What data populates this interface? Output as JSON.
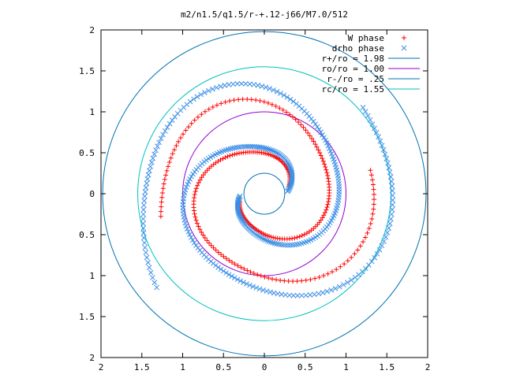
{
  "chart_data": {
    "type": "scatter",
    "title": "m2/n1.5/q1.5/r-+.12-j66/M7.0/512",
    "xlim": [
      -2,
      2
    ],
    "ylim": [
      -2,
      2
    ],
    "xticks": [
      "2",
      "1.5",
      "1",
      "0.5",
      "0",
      "0.5",
      "1",
      "1.5",
      "2"
    ],
    "yticks": [
      "2",
      "1.5",
      "1",
      "0.5",
      "0",
      "0.5",
      "1",
      "1.5",
      "2"
    ],
    "grid": false,
    "legend_position": "top-right",
    "series": [
      {
        "name": "W phase",
        "marker": "plus",
        "color": "#ff0000",
        "spiral": {
          "arms": 2,
          "theta_start": [
            0.3,
            3.44
          ],
          "theta_end": [
            6.5,
            9.64
          ],
          "r_start": 0.3,
          "r_end": 1.38,
          "count": 140
        }
      },
      {
        "name": "drho phase",
        "marker": "cross",
        "color": "#3a8ee6",
        "spiral": {
          "arms": 2,
          "theta_start": [
            0.1,
            3.24
          ],
          "theta_end": [
            7.0,
            10.14
          ],
          "r_start": 0.28,
          "r_end": 1.72,
          "count": 190
        }
      }
    ],
    "circles": [
      {
        "name": "r+/ro = 1.98",
        "r": 1.98,
        "color": "#0072b2"
      },
      {
        "name": "ro/ro = 1.00",
        "r": 1.0,
        "color": "#9400d3"
      },
      {
        "name": "r-/ro = .25",
        "r": 0.25,
        "color": "#0072b2"
      },
      {
        "name": "rc/ro = 1.55",
        "r": 1.55,
        "color": "#00c0c0"
      }
    ]
  }
}
